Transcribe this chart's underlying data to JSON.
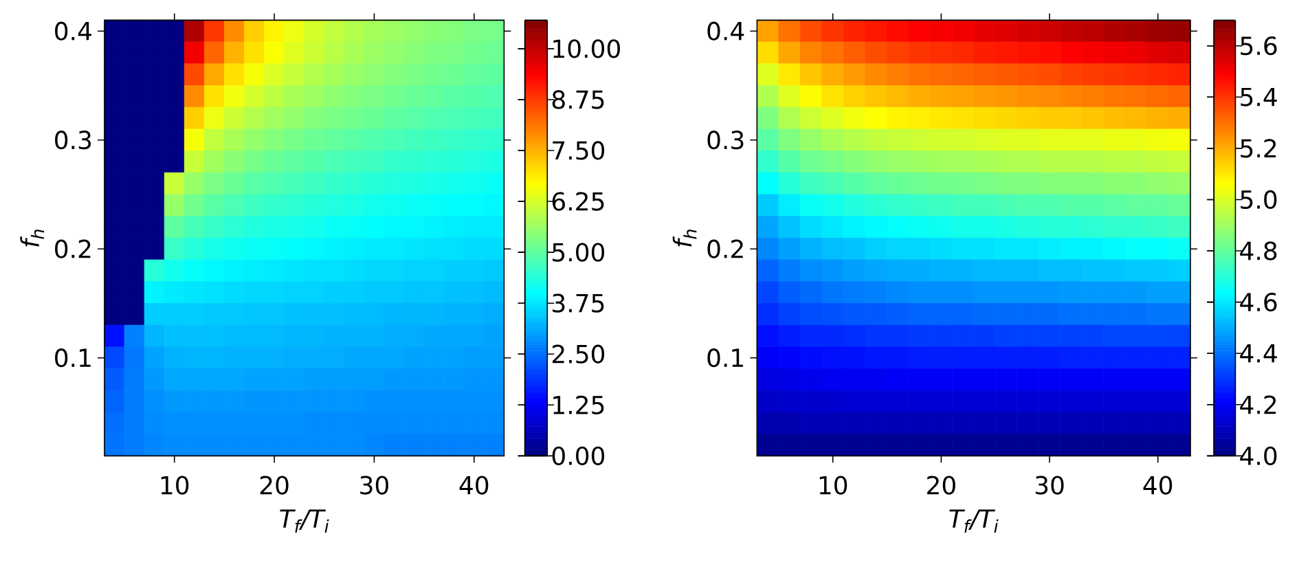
{
  "chart_data": [
    {
      "type": "heatmap",
      "xlabel": "T$_{f}$/T$_{i}$",
      "ylabel": "f$_{h}$",
      "categories": [
        null,
        null,
        null,
        "10",
        null,
        null,
        null,
        null,
        "20",
        null,
        null,
        null,
        null,
        "30",
        null,
        null,
        null,
        null,
        "40",
        null
      ],
      "y_categories": [
        "0.4",
        null,
        null,
        null,
        null,
        "0.3",
        null,
        null,
        null,
        null,
        "0.2",
        null,
        null,
        null,
        null,
        "0.1",
        null,
        null,
        null,
        null
      ],
      "cells": [
        [
          0,
          0,
          0,
          0,
          10.2,
          8.8,
          7.9,
          7.2,
          6.8,
          6.5,
          6.25,
          6.05,
          5.9,
          5.75,
          5.65,
          5.55,
          5.45,
          5.4,
          5.3,
          5.25
        ],
        [
          0,
          0,
          0,
          0,
          9.5,
          8.3,
          7.5,
          7.0,
          6.65,
          6.35,
          6.15,
          5.95,
          5.8,
          5.65,
          5.55,
          5.45,
          5.35,
          5.3,
          5.2,
          5.15
        ],
        [
          0,
          0,
          0,
          0,
          8.6,
          7.6,
          7.0,
          6.6,
          6.3,
          6.1,
          5.9,
          5.75,
          5.6,
          5.5,
          5.4,
          5.3,
          5.2,
          5.15,
          5.05,
          5.0
        ],
        [
          0,
          0,
          0,
          0,
          7.9,
          7.0,
          6.55,
          6.25,
          6.0,
          5.8,
          5.65,
          5.5,
          5.4,
          5.3,
          5.2,
          5.1,
          5.05,
          4.95,
          4.9,
          4.85
        ],
        [
          0,
          0,
          0,
          0,
          7.2,
          6.5,
          6.15,
          5.9,
          5.7,
          5.55,
          5.4,
          5.3,
          5.2,
          5.1,
          5.0,
          4.95,
          4.85,
          4.8,
          4.75,
          4.7
        ],
        [
          0,
          0,
          0,
          0,
          6.6,
          6.05,
          5.8,
          5.55,
          5.4,
          5.25,
          5.15,
          5.05,
          4.95,
          4.85,
          4.8,
          4.7,
          4.65,
          4.6,
          4.55,
          4.5
        ],
        [
          0,
          0,
          0,
          0,
          6.1,
          5.7,
          5.45,
          5.25,
          5.1,
          5.0,
          4.9,
          4.8,
          4.7,
          4.65,
          4.55,
          4.5,
          4.45,
          4.4,
          4.35,
          4.3
        ],
        [
          0,
          0,
          0,
          6.1,
          5.6,
          5.3,
          5.1,
          4.95,
          4.85,
          4.75,
          4.65,
          4.55,
          4.5,
          4.4,
          4.35,
          4.3,
          4.25,
          4.2,
          4.15,
          4.1
        ],
        [
          0,
          0,
          0,
          5.6,
          5.2,
          4.95,
          4.8,
          4.65,
          4.55,
          4.5,
          4.4,
          4.35,
          4.3,
          4.2,
          4.15,
          4.1,
          4.05,
          4.0,
          4.0,
          3.95
        ],
        [
          0,
          0,
          0,
          5.0,
          4.75,
          4.6,
          4.45,
          4.35,
          4.3,
          4.25,
          4.2,
          4.1,
          4.05,
          4.0,
          3.95,
          3.95,
          3.9,
          3.85,
          3.8,
          3.8
        ],
        [
          0,
          0,
          0,
          4.6,
          4.4,
          4.25,
          4.15,
          4.1,
          4.05,
          4.0,
          3.95,
          3.9,
          3.85,
          3.8,
          3.8,
          3.75,
          3.7,
          3.7,
          3.65,
          3.65
        ],
        [
          0,
          0,
          4.4,
          4.2,
          4.05,
          3.95,
          3.9,
          3.85,
          3.8,
          3.75,
          3.7,
          3.7,
          3.65,
          3.6,
          3.6,
          3.55,
          3.55,
          3.5,
          3.5,
          3.45
        ],
        [
          0,
          0,
          3.9,
          3.8,
          3.75,
          3.7,
          3.65,
          3.6,
          3.6,
          3.55,
          3.55,
          3.5,
          3.5,
          3.45,
          3.45,
          3.4,
          3.4,
          3.35,
          3.35,
          3.3
        ],
        [
          0,
          0,
          3.5,
          3.5,
          3.5,
          3.45,
          3.45,
          3.4,
          3.4,
          3.35,
          3.35,
          3.35,
          3.3,
          3.3,
          3.25,
          3.25,
          3.25,
          3.2,
          3.2,
          3.15
        ],
        [
          1.5,
          2.7,
          3.25,
          3.35,
          3.35,
          3.35,
          3.3,
          3.3,
          3.3,
          3.25,
          3.25,
          3.2,
          3.2,
          3.2,
          3.15,
          3.15,
          3.1,
          3.1,
          3.1,
          3.05
        ],
        [
          2.1,
          2.6,
          3.05,
          3.2,
          3.25,
          3.25,
          3.2,
          3.2,
          3.2,
          3.15,
          3.15,
          3.15,
          3.1,
          3.1,
          3.1,
          3.05,
          3.05,
          3.05,
          3.0,
          3.0
        ],
        [
          2.3,
          2.65,
          2.95,
          3.1,
          3.1,
          3.1,
          3.1,
          3.05,
          3.05,
          3.05,
          3.0,
          3.0,
          3.0,
          3.0,
          2.95,
          2.95,
          2.95,
          2.95,
          2.9,
          2.9
        ],
        [
          2.4,
          2.65,
          2.85,
          2.95,
          2.95,
          2.95,
          2.95,
          2.9,
          2.9,
          2.9,
          2.9,
          2.9,
          2.9,
          2.85,
          2.85,
          2.85,
          2.85,
          2.85,
          2.85,
          2.85
        ],
        [
          2.5,
          2.65,
          2.8,
          2.85,
          2.85,
          2.85,
          2.85,
          2.85,
          2.85,
          2.85,
          2.8,
          2.8,
          2.8,
          2.8,
          2.8,
          2.8,
          2.8,
          2.8,
          2.8,
          2.8
        ],
        [
          2.55,
          2.65,
          2.75,
          2.8,
          2.8,
          2.8,
          2.8,
          2.8,
          2.8,
          2.8,
          2.8,
          2.8,
          2.8,
          2.75,
          2.7,
          2.7,
          2.7,
          2.7,
          2.7,
          2.7
        ]
      ],
      "clim": [
        0,
        10.7
      ],
      "cticks": [
        {
          "value": 0,
          "label": "0.00"
        },
        1.25,
        {
          "value": 2.5,
          "label": "2.50"
        },
        3.75,
        {
          "value": 5,
          "label": "5.00"
        },
        6.25,
        {
          "value": 7.5,
          "label": "7.50"
        },
        8.75,
        {
          "value": 10,
          "label": "10.00"
        }
      ]
    },
    {
      "type": "heatmap",
      "xlabel": "T$_{f}$/T$_{i}$",
      "ylabel": "f$_{h}$",
      "categories": [
        null,
        null,
        null,
        "10",
        null,
        null,
        null,
        null,
        "20",
        null,
        null,
        null,
        null,
        "30",
        null,
        null,
        null,
        null,
        "40",
        null
      ],
      "y_categories": [
        "0.4",
        null,
        null,
        null,
        null,
        "0.3",
        null,
        null,
        null,
        null,
        "0.2",
        null,
        null,
        null,
        null,
        "0.1",
        null,
        null,
        null,
        null
      ],
      "cells": [
        [
          5.22,
          5.3,
          5.36,
          5.4,
          5.43,
          5.45,
          5.47,
          5.49,
          5.5,
          5.51,
          5.53,
          5.54,
          5.56,
          5.57,
          5.59,
          5.6,
          5.62,
          5.63,
          5.65,
          5.66
        ],
        [
          5.12,
          5.21,
          5.27,
          5.3,
          5.33,
          5.36,
          5.38,
          5.4,
          5.41,
          5.42,
          5.44,
          5.45,
          5.46,
          5.47,
          5.49,
          5.5,
          5.51,
          5.52,
          5.54,
          5.55
        ],
        [
          5.01,
          5.1,
          5.16,
          5.2,
          5.23,
          5.26,
          5.28,
          5.3,
          5.31,
          5.32,
          5.33,
          5.34,
          5.35,
          5.36,
          5.38,
          5.39,
          5.4,
          5.41,
          5.42,
          5.43
        ],
        [
          4.93,
          5.01,
          5.07,
          5.11,
          5.14,
          5.16,
          5.18,
          5.2,
          5.21,
          5.22,
          5.23,
          5.24,
          5.25,
          5.26,
          5.27,
          5.28,
          5.29,
          5.3,
          5.31,
          5.32
        ],
        [
          4.85,
          4.93,
          4.98,
          5.01,
          5.04,
          5.06,
          5.08,
          5.09,
          5.1,
          5.11,
          5.12,
          5.13,
          5.14,
          5.15,
          5.15,
          5.16,
          5.17,
          5.18,
          5.19,
          5.2
        ],
        [
          4.79,
          4.85,
          4.89,
          4.92,
          4.94,
          4.96,
          4.97,
          4.98,
          4.99,
          4.99,
          5.0,
          5.01,
          5.01,
          5.02,
          5.02,
          5.02,
          5.03,
          5.03,
          5.04,
          5.05
        ],
        [
          4.72,
          4.78,
          4.82,
          4.84,
          4.86,
          4.88,
          4.89,
          4.9,
          4.91,
          4.91,
          4.92,
          4.93,
          4.93,
          4.94,
          4.94,
          4.94,
          4.95,
          4.95,
          4.96,
          4.97
        ],
        [
          4.64,
          4.7,
          4.74,
          4.76,
          4.78,
          4.8,
          4.81,
          4.82,
          4.83,
          4.83,
          4.84,
          4.85,
          4.85,
          4.86,
          4.86,
          4.86,
          4.87,
          4.87,
          4.88,
          4.89
        ],
        [
          4.55,
          4.61,
          4.65,
          4.67,
          4.69,
          4.71,
          4.72,
          4.73,
          4.74,
          4.75,
          4.75,
          4.76,
          4.77,
          4.77,
          4.78,
          4.78,
          4.79,
          4.8,
          4.8,
          4.81
        ],
        [
          4.49,
          4.54,
          4.58,
          4.6,
          4.62,
          4.63,
          4.64,
          4.65,
          4.66,
          4.67,
          4.67,
          4.68,
          4.69,
          4.7,
          4.7,
          4.71,
          4.72,
          4.72,
          4.73,
          4.74
        ],
        [
          4.44,
          4.48,
          4.51,
          4.53,
          4.54,
          4.56,
          4.57,
          4.57,
          4.58,
          4.59,
          4.59,
          4.6,
          4.6,
          4.61,
          4.62,
          4.62,
          4.63,
          4.64,
          4.64,
          4.65
        ],
        [
          4.38,
          4.42,
          4.45,
          4.46,
          4.48,
          4.49,
          4.5,
          4.5,
          4.51,
          4.51,
          4.52,
          4.52,
          4.52,
          4.53,
          4.53,
          4.54,
          4.54,
          4.55,
          4.55,
          4.56
        ],
        [
          4.33,
          4.37,
          4.39,
          4.41,
          4.42,
          4.43,
          4.44,
          4.45,
          4.45,
          4.45,
          4.46,
          4.46,
          4.46,
          4.46,
          4.47,
          4.47,
          4.47,
          4.47,
          4.48,
          4.48
        ],
        [
          4.29,
          4.32,
          4.34,
          4.35,
          4.36,
          4.36,
          4.37,
          4.38,
          4.38,
          4.38,
          4.39,
          4.39,
          4.39,
          4.39,
          4.4,
          4.4,
          4.4,
          4.4,
          4.41,
          4.41
        ],
        [
          4.24,
          4.26,
          4.28,
          4.28,
          4.29,
          4.3,
          4.3,
          4.31,
          4.31,
          4.31,
          4.31,
          4.32,
          4.32,
          4.32,
          4.32,
          4.32,
          4.33,
          4.33,
          4.33,
          4.33
        ],
        [
          4.2,
          4.22,
          4.23,
          4.24,
          4.24,
          4.25,
          4.25,
          4.26,
          4.26,
          4.26,
          4.26,
          4.26,
          4.26,
          4.26,
          4.27,
          4.27,
          4.27,
          4.27,
          4.27,
          4.27
        ],
        [
          4.16,
          4.17,
          4.18,
          4.19,
          4.19,
          4.19,
          4.2,
          4.2,
          4.2,
          4.2,
          4.2,
          4.2,
          4.2,
          4.2,
          4.2,
          4.2,
          4.2,
          4.2,
          4.2,
          4.2
        ],
        [
          4.12,
          4.13,
          4.13,
          4.13,
          4.14,
          4.14,
          4.14,
          4.14,
          4.14,
          4.14,
          4.14,
          4.14,
          4.14,
          4.14,
          4.14,
          4.14,
          4.14,
          4.14,
          4.14,
          4.14
        ],
        [
          4.08,
          4.08,
          4.09,
          4.09,
          4.09,
          4.09,
          4.09,
          4.09,
          4.09,
          4.09,
          4.09,
          4.09,
          4.09,
          4.09,
          4.09,
          4.09,
          4.09,
          4.09,
          4.09,
          4.09
        ],
        [
          4.03,
          4.03,
          4.03,
          4.03,
          4.03,
          4.03,
          4.03,
          4.03,
          4.03,
          4.03,
          4.03,
          4.03,
          4.03,
          4.03,
          4.03,
          4.03,
          4.03,
          4.03,
          4.03,
          4.03
        ]
      ],
      "clim": [
        4.0,
        5.7
      ],
      "cticks": [
        {
          "value": 4,
          "label": "4.0"
        },
        4.2,
        4.4,
        4.6,
        4.8,
        {
          "value": 5,
          "label": "5.0"
        },
        5.2,
        5.4,
        5.6
      ]
    }
  ]
}
